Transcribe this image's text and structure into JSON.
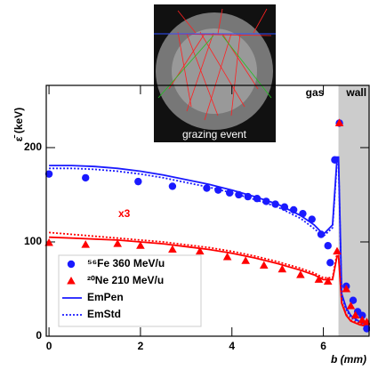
{
  "chart_data": {
    "type": "line",
    "inset_caption": "grazing event",
    "annotations": [
      "x3",
      "gas"
    ],
    "region": {
      "label": "wall",
      "from": 6.33,
      "to": 7.0,
      "color": "#cccccc"
    },
    "x_label": "b (mm)",
    "y_label": "ε̄ (keV)",
    "xlim": [
      -0.06,
      7.0
    ],
    "xticks": [
      0,
      2,
      4,
      6
    ],
    "ylim": [
      0,
      266
    ],
    "yticks": [
      0,
      100,
      200
    ],
    "legend": "lower left",
    "series": [
      {
        "name": "⁵⁶Fe 360 MeV/u",
        "color": "#1a1aff",
        "marker": "circle",
        "x": [
          0,
          0.8,
          1.95,
          2.7,
          3.45,
          3.7,
          3.95,
          4.15,
          4.35,
          4.55,
          4.75,
          4.95,
          5.15,
          5.35,
          5.55,
          5.75,
          5.95,
          6.1,
          6.15,
          6.25,
          6.35,
          6.5,
          6.65,
          6.75,
          6.85,
          6.95
        ],
        "values": [
          172,
          168,
          164,
          159,
          157,
          155,
          152,
          150,
          148,
          146,
          143,
          140,
          137,
          134,
          130,
          124,
          108,
          96,
          78,
          187,
          226,
          53,
          38,
          26,
          22,
          8
        ]
      },
      {
        "name": "²⁰Ne 210 MeV/u",
        "color": "#ff0000",
        "marker": "triangle",
        "x": [
          0,
          0.8,
          1.5,
          2,
          2.7,
          3.3,
          3.9,
          4.3,
          4.7,
          5.1,
          5.5,
          5.9,
          6.1,
          6.3,
          6.35,
          6.5,
          6.6,
          6.7,
          6.85,
          6.95
        ],
        "values": [
          99,
          97,
          98,
          96,
          92,
          90,
          84,
          80,
          75,
          71,
          65,
          60,
          58,
          90,
          226,
          50,
          32,
          22,
          17,
          15
        ]
      },
      {
        "name": "EmPen",
        "dash": "solid",
        "curves": [
          {
            "color": "#1a1aff",
            "x": [
              0,
              0.5,
              1,
              1.5,
              2,
              2.5,
              3,
              3.5,
              4,
              4.5,
              5,
              5.5,
              5.8,
              6.0,
              6.2,
              6.3,
              6.33,
              6.4,
              6.5,
              6.6,
              6.8,
              7.0
            ],
            "values": [
              181,
              181,
              180,
              178,
              175,
              171,
              166,
              161,
              155,
              148,
              140,
              128,
              118,
              108,
              118,
              190,
              190,
              45,
              30,
              22,
              15,
              12
            ]
          },
          {
            "color": "#ff0000",
            "x": [
              0,
              0.5,
              1,
              1.5,
              2,
              2.5,
              3,
              3.5,
              4,
              4.5,
              5,
              5.5,
              5.8,
              6.0,
              6.2,
              6.3,
              6.33,
              6.4,
              6.5,
              6.6,
              6.8,
              7.0
            ],
            "values": [
              105,
              104,
              103,
              102,
              100,
              98,
              95,
              92,
              88,
              83,
              77,
              70,
              65,
              60,
              60,
              85,
              85,
              35,
              22,
              16,
              12,
              10
            ]
          }
        ]
      },
      {
        "name": "EmStd",
        "dash": "dotted",
        "curves": [
          {
            "color": "#1a1aff",
            "x": [
              0,
              0.5,
              1,
              1.5,
              2,
              2.5,
              3,
              3.5,
              4,
              4.5,
              5,
              5.5,
              5.8,
              6.0,
              6.2,
              6.3,
              6.33,
              6.4,
              6.5,
              6.6,
              6.8,
              7.0
            ],
            "values": [
              178,
              178,
              177,
              175,
              172,
              168,
              163,
              158,
              152,
              145,
              137,
              125,
              114,
              106,
              115,
              185,
              185,
              42,
              28,
              20,
              14,
              11
            ]
          },
          {
            "color": "#ff0000",
            "x": [
              0,
              0.5,
              1,
              1.5,
              2,
              2.5,
              3,
              3.5,
              4,
              4.5,
              5,
              5.5,
              5.8,
              6.0,
              6.2,
              6.3,
              6.33,
              6.4,
              6.5,
              6.6,
              6.8,
              7.0
            ],
            "values": [
              110,
              108,
              106,
              104,
              102,
              100,
              97,
              94,
              90,
              85,
              79,
              72,
              67,
              62,
              62,
              88,
              88,
              36,
              23,
              17,
              13,
              11
            ]
          }
        ]
      }
    ]
  }
}
